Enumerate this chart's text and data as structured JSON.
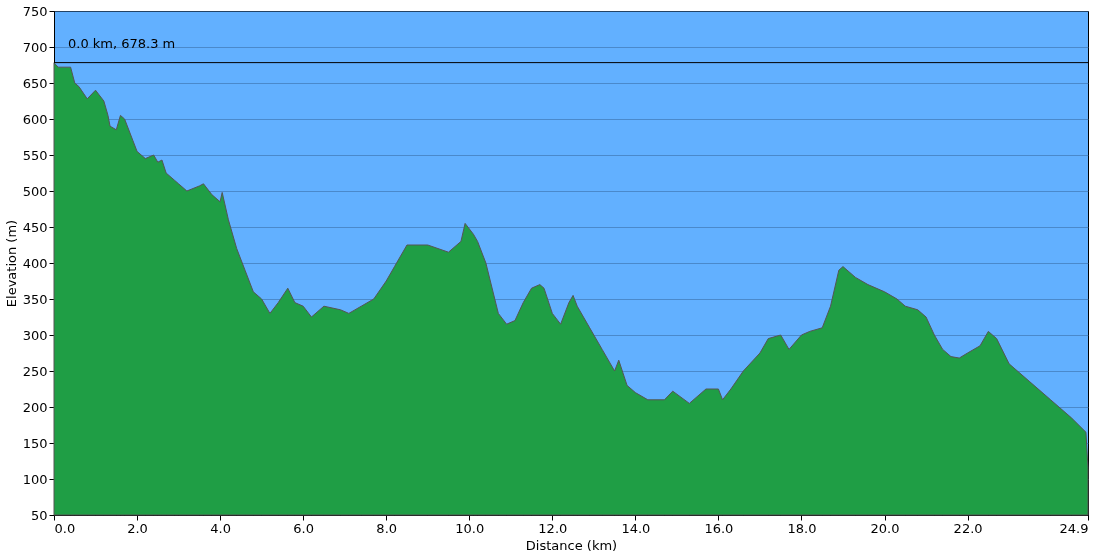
{
  "chart_data": {
    "type": "area",
    "xlabel": "Distance   (km)",
    "ylabel": "Elevation (m)",
    "x": [
      0,
      0.1,
      0.4,
      0.5,
      0.6,
      0.8,
      1.0,
      1.2,
      1.3,
      1.35,
      1.5,
      1.6,
      1.7,
      1.9,
      2.0,
      2.2,
      2.4,
      2.5,
      2.6,
      2.7,
      2.9,
      3.0,
      3.2,
      3.5,
      3.6,
      3.8,
      4.0,
      4.05,
      4.2,
      4.4,
      4.6,
      4.8,
      5.0,
      5.2,
      5.4,
      5.63,
      5.8,
      6.0,
      6.2,
      6.5,
      6.9,
      7.1,
      7.4,
      7.7,
      8.0,
      8.2,
      8.5,
      9.0,
      9.5,
      9.8,
      9.9,
      10.1,
      10.2,
      10.4,
      10.7,
      10.9,
      11.1,
      11.3,
      11.5,
      11.7,
      11.8,
      12.0,
      12.2,
      12.4,
      12.5,
      12.6,
      12.9,
      13.2,
      13.5,
      13.6,
      13.8,
      14.0,
      14.3,
      14.7,
      14.9,
      15.3,
      15.7,
      16.0,
      16.1,
      16.3,
      16.6,
      17.0,
      17.2,
      17.5,
      17.7,
      18.0,
      18.2,
      18.5,
      18.7,
      18.9,
      19.0,
      19.3,
      19.6,
      20.0,
      20.3,
      20.5,
      20.8,
      21.0,
      21.2,
      21.4,
      21.6,
      21.8,
      22.0,
      22.3,
      22.5,
      22.7,
      23.0,
      23.5,
      24.0,
      24.5,
      24.85,
      24.9
    ],
    "series": [
      {
        "color": "#1f9e45",
        "values": [
          678,
          672,
          672,
          650,
          645,
          628,
          640,
          625,
          605,
          590,
          585,
          605,
          600,
          570,
          555,
          545,
          550,
          540,
          543,
          525,
          515,
          510,
          500,
          507,
          510,
          495,
          485,
          498,
          460,
          420,
          390,
          360,
          350,
          330,
          345,
          365,
          345,
          340,
          325,
          340,
          335,
          330,
          340,
          350,
          375,
          395,
          425,
          425,
          415,
          430,
          455,
          440,
          430,
          400,
          330,
          315,
          320,
          345,
          365,
          370,
          365,
          330,
          315,
          345,
          355,
          340,
          310,
          280,
          250,
          265,
          230,
          220,
          210,
          210,
          222,
          205,
          225,
          225,
          210,
          225,
          250,
          275,
          295,
          300,
          280,
          300,
          305,
          310,
          340,
          390,
          395,
          380,
          370,
          360,
          350,
          340,
          335,
          325,
          300,
          280,
          270,
          268,
          275,
          285,
          305,
          295,
          260,
          235,
          210,
          185,
          165,
          115
        ]
      }
    ],
    "xlim": [
      0,
      24.9
    ],
    "ylim": [
      50,
      750
    ],
    "xticks": [
      {
        "value": 0,
        "label": "0.0"
      },
      {
        "value": 2,
        "label": "2.0"
      },
      {
        "value": 4,
        "label": "4.0"
      },
      {
        "value": 6,
        "label": "6.0"
      },
      {
        "value": 8,
        "label": "8.0"
      },
      {
        "value": 10,
        "label": "10.0"
      },
      {
        "value": 12,
        "label": "12.0"
      },
      {
        "value": 14,
        "label": "14.0"
      },
      {
        "value": 16,
        "label": "16.0"
      },
      {
        "value": 18,
        "label": "18.0"
      },
      {
        "value": 20,
        "label": "20.0"
      },
      {
        "value": 22,
        "label": "22.0"
      },
      {
        "value": 24.9,
        "label": "24.9"
      }
    ],
    "yticks": [
      50,
      100,
      150,
      200,
      250,
      300,
      350,
      400,
      450,
      500,
      550,
      600,
      650,
      700,
      750
    ],
    "grid": "y",
    "ref_lines": [
      {
        "axis": "y",
        "value": 678.3,
        "color": "#000000"
      }
    ],
    "annotations": [
      {
        "text": "0.0 km, 678.3 m",
        "x": 0,
        "y": 678.3
      }
    ]
  }
}
